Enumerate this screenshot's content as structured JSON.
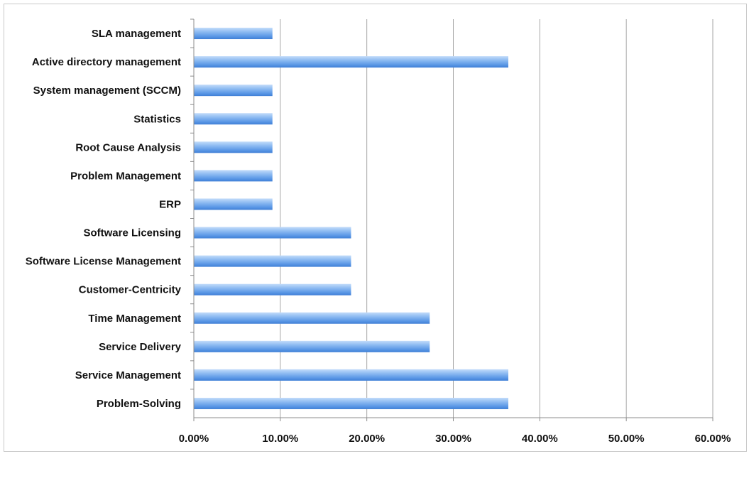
{
  "chart_data": {
    "type": "bar",
    "orientation": "horizontal",
    "categories": [
      "SLA management",
      "Active directory management",
      "System management (SCCM)",
      "Statistics",
      "Root Cause Analysis",
      "Problem Management",
      "ERP",
      "Software Licensing",
      "Software License Management",
      "Customer-Centricity",
      "Time Management",
      "Service Delivery",
      "Service Management",
      "Problem-Solving"
    ],
    "values": [
      9.09,
      36.36,
      9.09,
      9.09,
      9.09,
      9.09,
      9.09,
      18.18,
      18.18,
      18.18,
      27.27,
      27.27,
      36.36,
      36.36
    ],
    "xlim": [
      0,
      60
    ],
    "xticks": [
      "0.00%",
      "10.00%",
      "20.00%",
      "30.00%",
      "40.00%",
      "50.00%",
      "60.00%"
    ],
    "title": "",
    "xlabel": "",
    "ylabel": "",
    "grid": "vertical",
    "legend": "none",
    "colors": {
      "bar_light": "#a8ccf6",
      "bar_mid": "#6aa5ec",
      "bar_dark": "#3f82dc",
      "grid": "#a6a6a6",
      "axis": "#8c8c8c"
    }
  }
}
